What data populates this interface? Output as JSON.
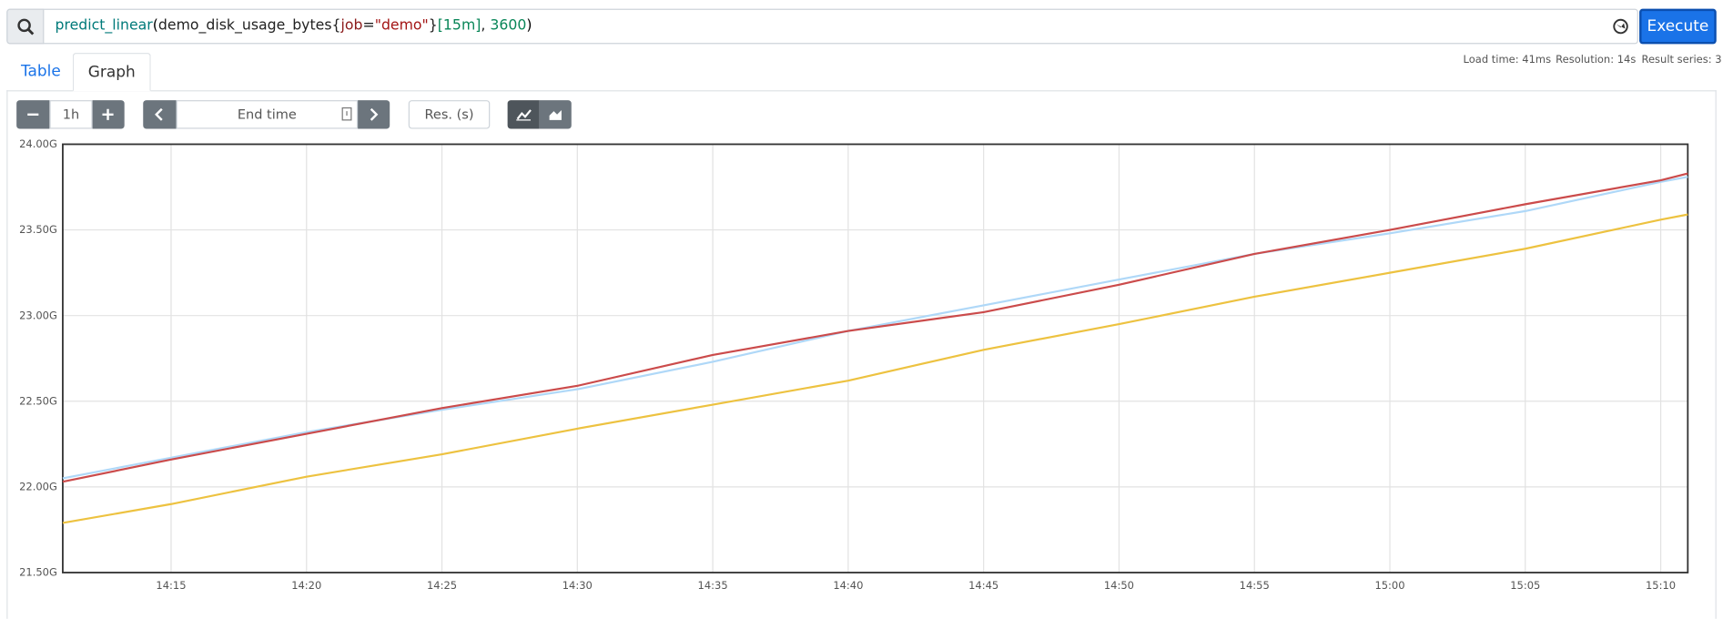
{
  "query": {
    "tokens": [
      {
        "text": "predict_linear",
        "color": "#007a7a"
      },
      {
        "text": "(",
        "color": "#000000"
      },
      {
        "text": "demo_disk_usage_bytes",
        "color": "#222222"
      },
      {
        "text": "{",
        "color": "#222222"
      },
      {
        "text": "job",
        "color": "#8b1a1a"
      },
      {
        "text": "=",
        "color": "#222222"
      },
      {
        "text": "\"demo\"",
        "color": "#a31515"
      },
      {
        "text": "}",
        "color": "#222222"
      },
      {
        "text": "[15m]",
        "color": "#098658"
      },
      {
        "text": ", ",
        "color": "#222222"
      },
      {
        "text": "3600",
        "color": "#098658"
      },
      {
        "text": ")",
        "color": "#000000"
      }
    ],
    "button": "Execute"
  },
  "tabs": [
    "Table",
    "Graph"
  ],
  "stats": [
    "Load time: 41ms",
    "Resolution: 14s",
    "Result series: 3"
  ],
  "controls": {
    "range": "1h",
    "end_time": "End time",
    "resolution": "Res. (s)"
  },
  "chart_data": {
    "type": "line",
    "x": [
      "14:11",
      "14:15",
      "14:20",
      "14:25",
      "14:30",
      "14:35",
      "14:40",
      "14:45",
      "14:50",
      "14:55",
      "15:00",
      "15:05",
      "15:10",
      "15:11"
    ],
    "series": [
      {
        "color": "#afd8f8",
        "values": [
          22.05,
          22.17,
          22.32,
          22.45,
          22.57,
          22.73,
          22.91,
          23.06,
          23.21,
          23.36,
          23.48,
          23.61,
          23.78,
          23.81
        ]
      },
      {
        "color": "#edc240",
        "values": [
          21.79,
          21.9,
          22.06,
          22.19,
          22.34,
          22.48,
          22.62,
          22.8,
          22.95,
          23.11,
          23.25,
          23.39,
          23.56,
          23.59
        ]
      },
      {
        "color": "#cb4b4b",
        "values": [
          22.03,
          22.16,
          22.31,
          22.46,
          22.59,
          22.77,
          22.91,
          23.02,
          23.18,
          23.36,
          23.5,
          23.65,
          23.79,
          23.83
        ]
      }
    ],
    "xlim": [
      "14:11",
      "15:11"
    ],
    "xticks": [
      "14:15",
      "14:20",
      "14:25",
      "14:30",
      "14:35",
      "14:40",
      "14:45",
      "14:50",
      "14:55",
      "15:00",
      "15:05",
      "15:10"
    ],
    "ylim": [
      21.5,
      24
    ],
    "yticks": [
      {
        "value": 21.5,
        "label": "21.50G"
      },
      {
        "value": 22,
        "label": "22.00G"
      },
      {
        "value": 22.5,
        "label": "22.50G"
      },
      {
        "value": 23,
        "label": "23.00G"
      },
      {
        "value": 23.5,
        "label": "23.50G"
      },
      {
        "value": 24,
        "label": "24.00G"
      }
    ],
    "grid": true
  }
}
